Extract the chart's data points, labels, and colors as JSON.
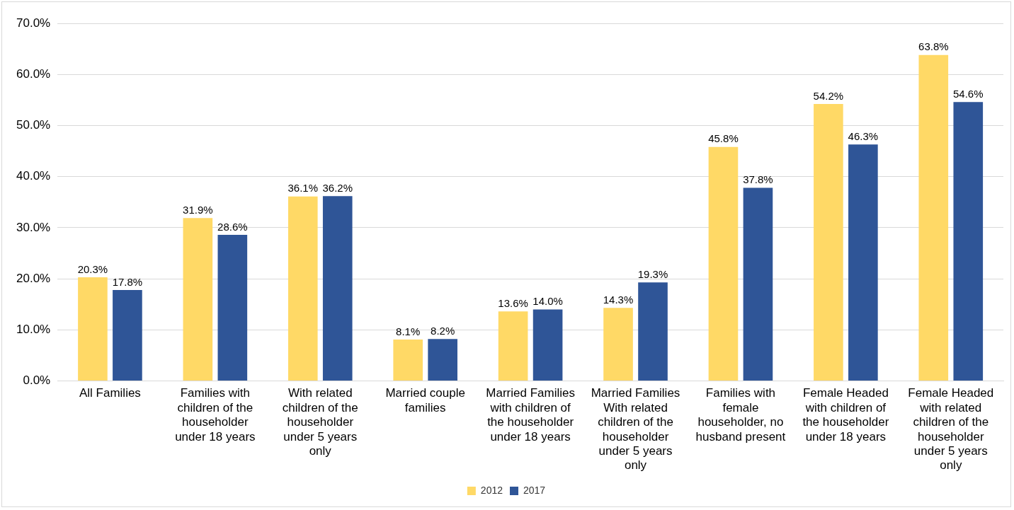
{
  "chart_data": {
    "type": "bar",
    "categories": [
      "All Families",
      "Families with children of the householder under 18 years",
      "With related children of the householder under 5 years only",
      "Married couple families",
      "Married Families with children of the householder under 18 years",
      "Married Families With related children of the householder under 5 years only",
      "Families with female householder, no husband present",
      "Female Headed with children of the householder under 18 years",
      "Female Headed with related children of the householder under 5 years only"
    ],
    "series": [
      {
        "name": "2012",
        "color": "#ffd966",
        "values": [
          20.3,
          31.9,
          36.1,
          8.1,
          13.6,
          14.3,
          45.8,
          54.2,
          63.8
        ],
        "value_labels": [
          "20.3%",
          "31.9%",
          "36.1%",
          "8.1%",
          "13.6%",
          "14.3%",
          "45.8%",
          "54.2%",
          "63.8%"
        ]
      },
      {
        "name": "2017",
        "color": "#2f5597",
        "values": [
          17.8,
          28.6,
          36.2,
          8.2,
          14.0,
          19.3,
          37.8,
          46.3,
          54.6
        ],
        "value_labels": [
          "17.8%",
          "28.6%",
          "36.2%",
          "8.2%",
          "14.0%",
          "19.3%",
          "37.8%",
          "46.3%",
          "54.6%"
        ]
      }
    ],
    "ylim": [
      0,
      70
    ],
    "yticks": [
      {
        "value": 0,
        "label": "0.0%"
      },
      {
        "value": 10,
        "label": "10.0%"
      },
      {
        "value": 20,
        "label": "20.0%"
      },
      {
        "value": 30,
        "label": "30.0%"
      },
      {
        "value": 40,
        "label": "40.0%"
      },
      {
        "value": 50,
        "label": "50.0%"
      },
      {
        "value": 60,
        "label": "60.0%"
      },
      {
        "value": 70,
        "label": "70.0%"
      }
    ],
    "grid": "y",
    "legend": "bottom"
  }
}
